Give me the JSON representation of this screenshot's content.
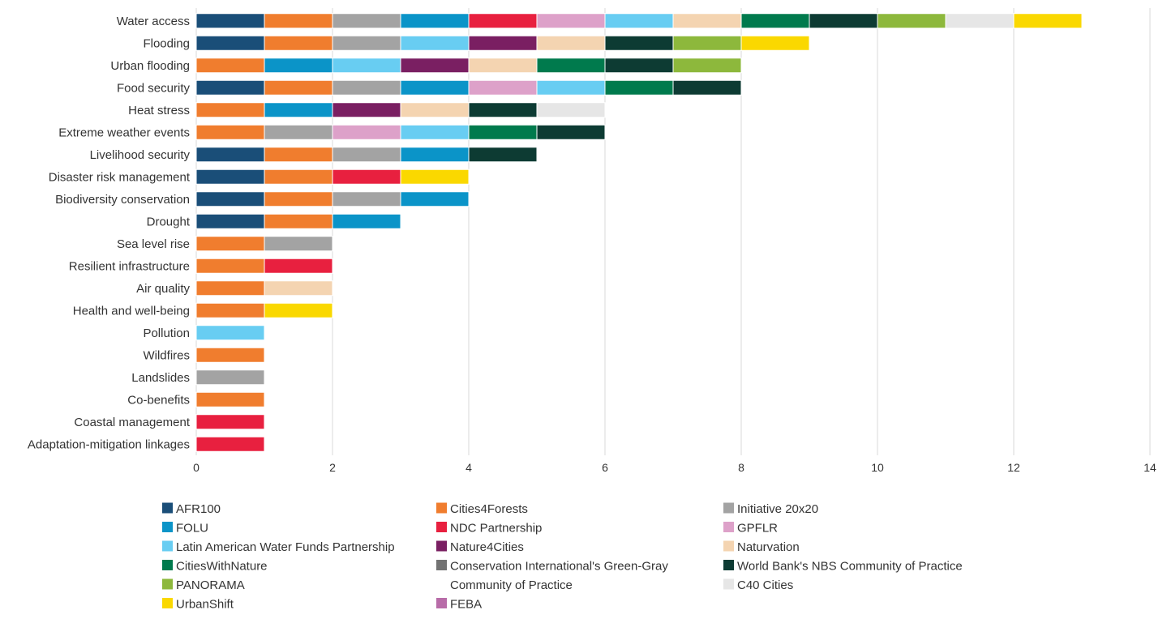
{
  "chart_data": {
    "type": "bar",
    "orientation": "horizontal",
    "stacked": true,
    "categories": [
      "Water access",
      "Flooding",
      "Urban flooding",
      "Food security",
      "Heat stress",
      "Extreme weather events",
      "Livelihood security",
      "Disaster risk management",
      "Biodiversity conservation",
      "Drought",
      "Sea level rise",
      "Resilient infrastructure",
      "Air quality",
      "Health and well-being",
      "Pollution",
      "Wildfires",
      "Landslides",
      "Co-benefits",
      "Coastal management",
      "Adaptation-mitigation linkages"
    ],
    "series": [
      {
        "name": "AFR100",
        "color": "#1a4e78",
        "values": [
          1,
          1,
          0,
          1,
          0,
          0,
          1,
          1,
          1,
          1,
          0,
          0,
          0,
          0,
          0,
          0,
          0,
          0,
          0,
          0
        ]
      },
      {
        "name": "Cities4Forests",
        "color": "#f07d2e",
        "values": [
          1,
          1,
          1,
          1,
          1,
          1,
          1,
          1,
          1,
          1,
          1,
          1,
          1,
          1,
          0,
          1,
          0,
          1,
          0,
          0
        ]
      },
      {
        "name": "Initiative 20x20",
        "color": "#a3a3a3",
        "values": [
          1,
          1,
          0,
          1,
          0,
          1,
          1,
          0,
          1,
          0,
          1,
          0,
          0,
          0,
          0,
          0,
          1,
          0,
          0,
          0
        ]
      },
      {
        "name": "FOLU",
        "color": "#0b94c8",
        "values": [
          1,
          0,
          1,
          1,
          1,
          0,
          1,
          0,
          1,
          1,
          0,
          0,
          0,
          0,
          0,
          0,
          0,
          0,
          0,
          0
        ]
      },
      {
        "name": "NDC Partnership",
        "color": "#e8203f",
        "values": [
          1,
          0,
          0,
          0,
          0,
          0,
          0,
          1,
          0,
          0,
          0,
          1,
          0,
          0,
          0,
          0,
          0,
          0,
          1,
          1
        ]
      },
      {
        "name": "GPFLR",
        "color": "#dda1c9",
        "values": [
          1,
          0,
          0,
          1,
          0,
          1,
          0,
          0,
          0,
          0,
          0,
          0,
          0,
          0,
          0,
          0,
          0,
          0,
          0,
          0
        ]
      },
      {
        "name": "Latin American Water Funds Partnership",
        "color": "#68cdf2",
        "values": [
          1,
          1,
          1,
          1,
          0,
          1,
          0,
          0,
          0,
          0,
          0,
          0,
          0,
          0,
          1,
          0,
          0,
          0,
          0,
          0
        ]
      },
      {
        "name": "Nature4Cities",
        "color": "#7a1f62",
        "values": [
          0,
          1,
          1,
          0,
          1,
          0,
          0,
          0,
          0,
          0,
          0,
          0,
          0,
          0,
          0,
          0,
          0,
          0,
          0,
          0
        ]
      },
      {
        "name": "Naturvation",
        "color": "#f4d4b1",
        "values": [
          1,
          1,
          1,
          0,
          1,
          0,
          0,
          0,
          0,
          0,
          0,
          0,
          1,
          0,
          0,
          0,
          0,
          0,
          0,
          0
        ]
      },
      {
        "name": "CitiesWithNature",
        "color": "#007a4d",
        "values": [
          1,
          0,
          1,
          1,
          0,
          1,
          0,
          0,
          0,
          0,
          0,
          0,
          0,
          0,
          0,
          0,
          0,
          0,
          0,
          0
        ]
      },
      {
        "name": "Conservation International's Green-Gray Community of Practice",
        "color": "#737373",
        "values": [
          0,
          0,
          0,
          0,
          0,
          0,
          0,
          0,
          0,
          0,
          0,
          0,
          0,
          0,
          0,
          0,
          0,
          0,
          0,
          0
        ]
      },
      {
        "name": "World Bank's NBS Community of Practice",
        "color": "#0d3b33",
        "values": [
          1,
          1,
          1,
          1,
          1,
          1,
          1,
          0,
          0,
          0,
          0,
          0,
          0,
          0,
          0,
          0,
          0,
          0,
          0,
          0
        ]
      },
      {
        "name": "PANORAMA",
        "color": "#8db83c",
        "values": [
          1,
          1,
          1,
          0,
          0,
          0,
          0,
          0,
          0,
          0,
          0,
          0,
          0,
          0,
          0,
          0,
          0,
          0,
          0,
          0
        ]
      },
      {
        "name": "C40 Cities",
        "color": "#e6e6e6",
        "values": [
          1,
          0,
          0,
          0,
          1,
          0,
          0,
          0,
          0,
          0,
          0,
          0,
          0,
          0,
          0,
          0,
          0,
          0,
          0,
          0
        ]
      },
      {
        "name": "UrbanShift",
        "color": "#fad800",
        "values": [
          1,
          1,
          0,
          0,
          0,
          0,
          0,
          1,
          0,
          0,
          0,
          0,
          0,
          1,
          0,
          0,
          0,
          0,
          0,
          0
        ]
      },
      {
        "name": "FEBA",
        "color": "#b86ca8",
        "values": [
          0,
          0,
          0,
          0,
          0,
          0,
          0,
          0,
          0,
          0,
          0,
          0,
          0,
          0,
          0,
          0,
          0,
          0,
          0,
          0
        ]
      }
    ],
    "xlim": [
      0,
      14
    ],
    "xticks": [
      0,
      2,
      4,
      6,
      8,
      10,
      12,
      14
    ],
    "title": "",
    "xlabel": "",
    "ylabel": "",
    "grid": "vertical",
    "legend_position": "bottom",
    "legend_order": [
      "AFR100",
      "Cities4Forests",
      "Initiative 20x20",
      "FOLU",
      "NDC Partnership",
      "GPFLR",
      "Latin American Water Funds Partnership",
      "Nature4Cities",
      "Naturvation",
      "CitiesWithNature",
      "Conservation International's Green-Gray Community of Practice",
      "World Bank's NBS Community of Practice",
      "PANORAMA",
      "C40 Cities",
      "UrbanShift",
      "FEBA"
    ]
  }
}
